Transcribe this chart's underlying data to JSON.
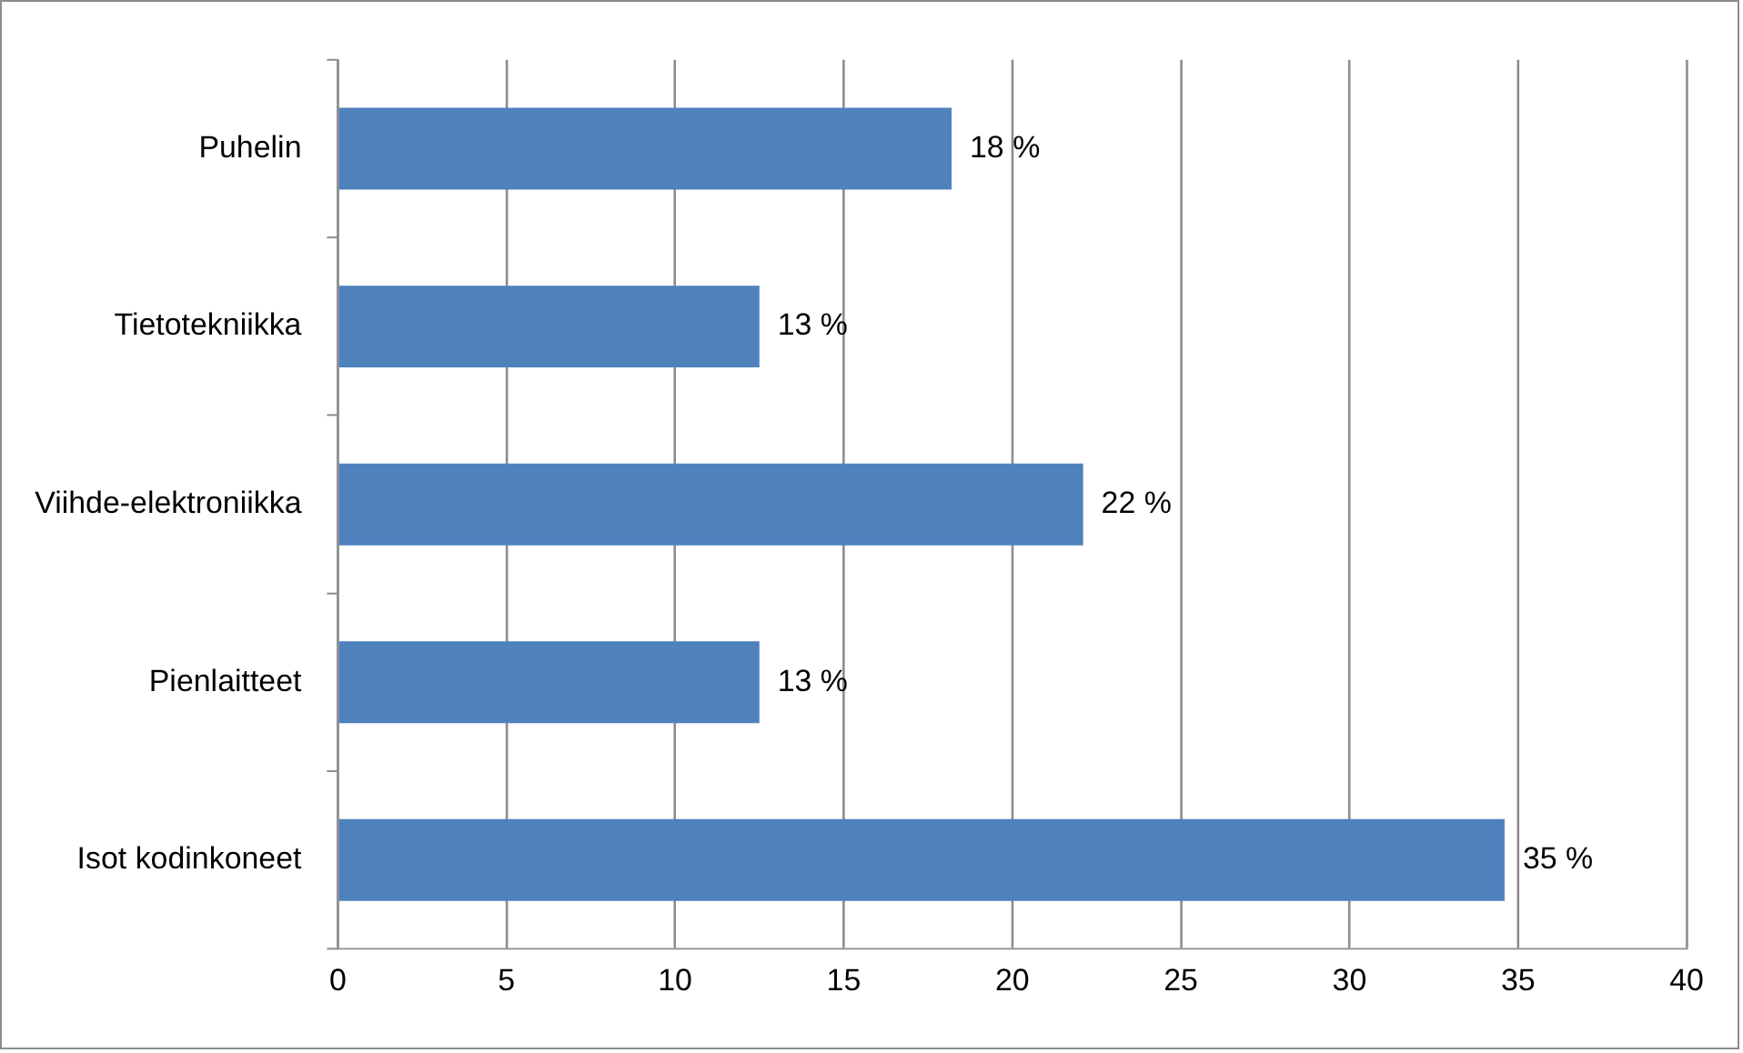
{
  "chart_data": {
    "type": "bar",
    "orientation": "horizontal",
    "categories": [
      "Puhelin",
      "Tietotekniikka",
      "Viihde-elektroniikka",
      "Pienlaitteet",
      "Isot kodinkoneet"
    ],
    "values": [
      18.2,
      12.5,
      22.1,
      12.5,
      34.6
    ],
    "value_labels": [
      "18 %",
      "13 %",
      "22 %",
      "13 %",
      "35 %"
    ],
    "color": "#4f81bd",
    "xlim": [
      0,
      40
    ],
    "xticks": [
      0,
      5,
      10,
      15,
      20,
      25,
      30,
      35,
      40
    ],
    "grid": "x",
    "legend": false
  }
}
